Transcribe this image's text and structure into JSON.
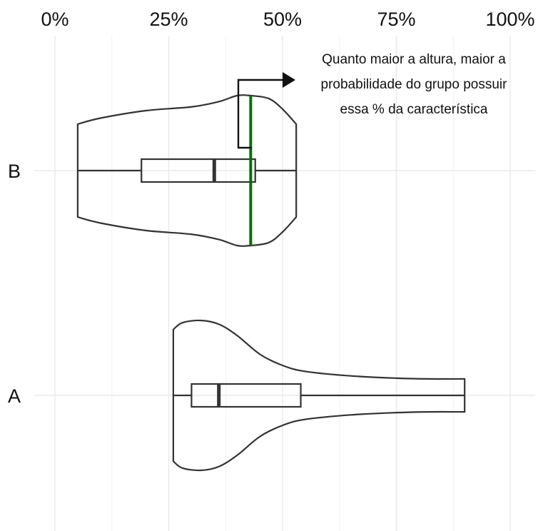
{
  "chart_data": {
    "type": "violin",
    "title": "",
    "xlabel": "",
    "ylabel": "",
    "xlim": [
      0,
      100
    ],
    "x_ticks": [
      0,
      25,
      50,
      75,
      100
    ],
    "x_tick_labels": [
      "0%",
      "25%",
      "50%",
      "75%",
      "100%"
    ],
    "x_position": "top",
    "grid": true,
    "categories": [
      "B",
      "A"
    ],
    "series": [
      {
        "category": "B",
        "density": [
          [
            5,
            0.62
          ],
          [
            10,
            0.7
          ],
          [
            20,
            0.8
          ],
          [
            30,
            0.85
          ],
          [
            36,
            0.92
          ],
          [
            40,
            1.0
          ],
          [
            43,
            1.0
          ],
          [
            47,
            0.96
          ],
          [
            50,
            0.82
          ],
          [
            53,
            0.62
          ]
        ],
        "box": {
          "whisker_low": 5,
          "q1": 19,
          "median": 35,
          "q3": 44,
          "whisker_high": 53
        }
      },
      {
        "category": "A",
        "density": [
          [
            26,
            0.88
          ],
          [
            28,
            0.97
          ],
          [
            32,
            1.0
          ],
          [
            36,
            0.95
          ],
          [
            40,
            0.8
          ],
          [
            45,
            0.55
          ],
          [
            50,
            0.4
          ],
          [
            55,
            0.32
          ],
          [
            65,
            0.26
          ],
          [
            75,
            0.23
          ],
          [
            82,
            0.22
          ],
          [
            90,
            0.22
          ]
        ],
        "box": {
          "whisker_low": 26,
          "q1": 30,
          "median": 36,
          "q3": 54,
          "whisker_high": 90
        }
      }
    ],
    "reference_line": {
      "category": "B",
      "x": 43,
      "color": "#0a6e0a"
    },
    "annotation": {
      "lines": [
        "Quanto maior a altura, maior a",
        "probabilidade do grupo possuir",
        "essa % da característica"
      ]
    }
  }
}
